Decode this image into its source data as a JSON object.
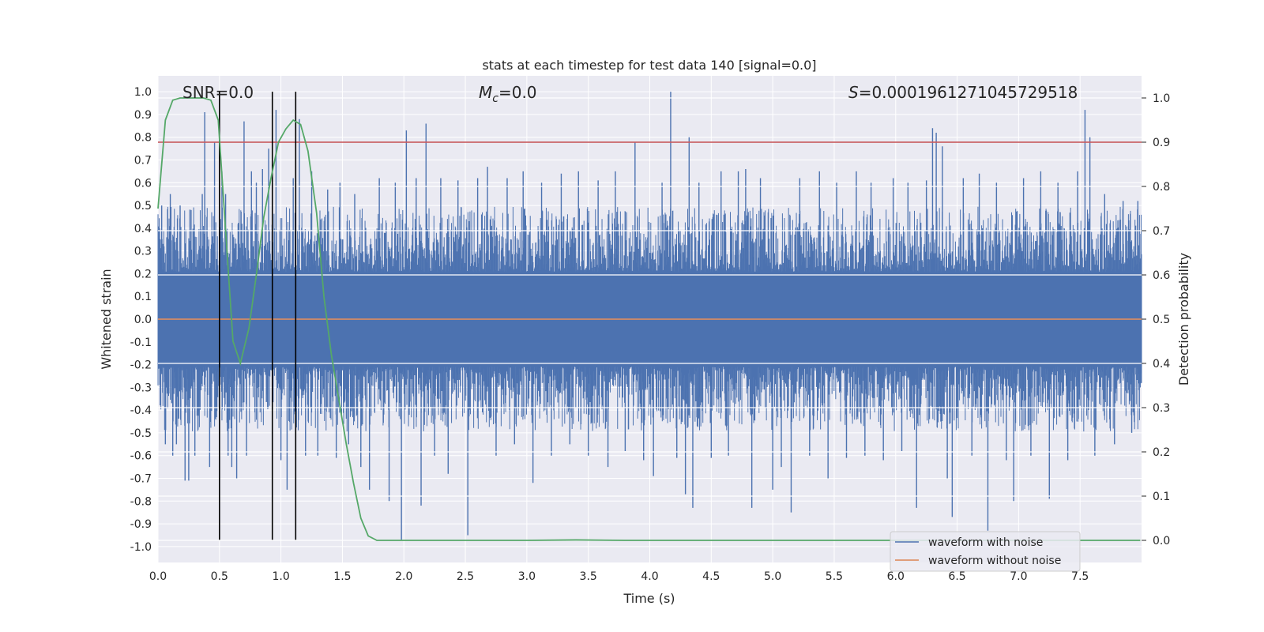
{
  "chart_data": {
    "type": "line",
    "title": "stats at each timestep for test data 140 [signal=0.0]",
    "xlabel": "Time (s)",
    "ylabel": "Whitened strain",
    "ylabel_right": "Detection probability",
    "xlim": [
      0.0,
      8.0
    ],
    "ylim": [
      -1.07,
      1.07
    ],
    "ylim_right": [
      -0.05,
      1.05
    ],
    "grid": true,
    "x_ticks": [
      0.0,
      0.5,
      1.0,
      1.5,
      2.0,
      2.5,
      3.0,
      3.5,
      4.0,
      4.5,
      5.0,
      5.5,
      6.0,
      6.5,
      7.0,
      7.5
    ],
    "x_tick_labels": [
      "0.0",
      "0.5",
      "1.0",
      "1.5",
      "2.0",
      "2.5",
      "3.0",
      "3.5",
      "4.0",
      "4.5",
      "5.0",
      "5.5",
      "6.0",
      "6.5",
      "7.0",
      "7.5"
    ],
    "y_ticks": [
      1.0,
      0.9,
      0.8,
      0.7,
      0.6,
      0.5,
      0.4,
      0.3,
      0.2,
      0.1,
      0.0,
      -0.1,
      -0.2,
      -0.3,
      -0.4,
      -0.5,
      -0.6,
      -0.7,
      -0.8,
      -0.9,
      -1.0
    ],
    "y_tick_labels": [
      "1.0",
      "0.9",
      "0.8",
      "0.7",
      "0.6",
      "0.5",
      "0.4",
      "0.3",
      "0.2",
      "0.1",
      "0.0",
      "-0.1",
      "-0.2",
      "-0.3",
      "-0.4",
      "-0.5",
      "-0.6",
      "-0.7",
      "-0.8",
      "-0.9",
      "-1.0"
    ],
    "y_ticks_right": [
      1.0,
      0.9,
      0.8,
      0.7,
      0.6,
      0.5,
      0.4,
      0.3,
      0.2,
      0.1,
      0.0
    ],
    "y_tick_labels_right": [
      "1.0",
      "0.9",
      "0.8",
      "0.7",
      "0.6",
      "0.5",
      "0.4",
      "0.3",
      "0.2",
      "0.1",
      "0.0"
    ],
    "annotations": {
      "snr": "SNR=0.0",
      "mc_symbol": "M",
      "mc_subscript": "c",
      "mc_value": "=0.0",
      "s_symbol": "S",
      "s_value": "=0.0001961271045729518"
    },
    "legend": {
      "position": "lower-right",
      "entries": [
        "waveform with noise",
        "waveform without noise"
      ]
    },
    "series": [
      {
        "name": "waveform with noise",
        "color": "#4c72b0",
        "axis": "left",
        "style": "noise",
        "typical_amplitude": 0.38,
        "peaks": [
          [
            0.03,
            0.5
          ],
          [
            0.06,
            -0.55
          ],
          [
            0.1,
            0.55
          ],
          [
            0.12,
            -0.6
          ],
          [
            0.15,
            -0.55
          ],
          [
            0.18,
            0.5
          ],
          [
            0.22,
            -0.71
          ],
          [
            0.25,
            -0.71
          ],
          [
            0.3,
            -0.6
          ],
          [
            0.36,
            0.55
          ],
          [
            0.38,
            0.91
          ],
          [
            0.42,
            -0.65
          ],
          [
            0.46,
            0.78
          ],
          [
            0.5,
            -0.78
          ],
          [
            0.52,
            0.65
          ],
          [
            0.55,
            0.55
          ],
          [
            0.57,
            -0.6
          ],
          [
            0.6,
            -0.65
          ],
          [
            0.64,
            -0.7
          ],
          [
            0.7,
            0.87
          ],
          [
            0.72,
            -0.6
          ],
          [
            0.76,
            0.65
          ],
          [
            0.8,
            0.6
          ],
          [
            0.85,
            0.66
          ],
          [
            0.9,
            0.75
          ],
          [
            0.93,
            -0.61
          ],
          [
            0.96,
            0.92
          ],
          [
            1.0,
            -0.62
          ],
          [
            1.05,
            -0.75
          ],
          [
            1.1,
            0.62
          ],
          [
            1.12,
            -0.85
          ],
          [
            1.15,
            0.88
          ],
          [
            1.2,
            -0.6
          ],
          [
            1.25,
            0.65
          ],
          [
            1.3,
            -0.6
          ],
          [
            1.38,
            0.57
          ],
          [
            1.45,
            -0.61
          ],
          [
            1.48,
            0.6
          ],
          [
            1.55,
            -0.55
          ],
          [
            1.6,
            0.55
          ],
          [
            1.65,
            -0.65
          ],
          [
            1.72,
            -0.75
          ],
          [
            1.8,
            0.62
          ],
          [
            1.88,
            -0.8
          ],
          [
            1.93,
            0.6
          ],
          [
            1.98,
            -0.97
          ],
          [
            2.02,
            0.83
          ],
          [
            2.1,
            0.62
          ],
          [
            2.14,
            -0.82
          ],
          [
            2.18,
            0.86
          ],
          [
            2.25,
            -0.6
          ],
          [
            2.3,
            0.62
          ],
          [
            2.36,
            -0.68
          ],
          [
            2.44,
            0.61
          ],
          [
            2.52,
            -0.95
          ],
          [
            2.6,
            0.62
          ],
          [
            2.68,
            0.67
          ],
          [
            2.75,
            -0.6
          ],
          [
            2.84,
            0.62
          ],
          [
            2.9,
            -0.55
          ],
          [
            2.97,
            0.65
          ],
          [
            3.05,
            -0.72
          ],
          [
            3.12,
            0.6
          ],
          [
            3.2,
            -0.6
          ],
          [
            3.28,
            0.64
          ],
          [
            3.35,
            -0.55
          ],
          [
            3.42,
            0.65
          ],
          [
            3.5,
            -0.6
          ],
          [
            3.58,
            0.61
          ],
          [
            3.66,
            -0.65
          ],
          [
            3.72,
            0.65
          ],
          [
            3.8,
            -0.58
          ],
          [
            3.88,
            0.78
          ],
          [
            3.95,
            -0.62
          ],
          [
            4.03,
            -0.69
          ],
          [
            4.1,
            0.6
          ],
          [
            4.17,
            1.0
          ],
          [
            4.22,
            -0.61
          ],
          [
            4.29,
            -0.77
          ],
          [
            4.32,
            0.8
          ],
          [
            4.35,
            -0.83
          ],
          [
            4.4,
            0.6
          ],
          [
            4.5,
            -0.61
          ],
          [
            4.58,
            0.65
          ],
          [
            4.64,
            -0.6
          ],
          [
            4.72,
            0.65
          ],
          [
            4.78,
            0.66
          ],
          [
            4.83,
            -0.83
          ],
          [
            4.9,
            0.62
          ],
          [
            5.0,
            -0.75
          ],
          [
            5.07,
            -0.65
          ],
          [
            5.15,
            -0.85
          ],
          [
            5.22,
            0.62
          ],
          [
            5.3,
            -0.6
          ],
          [
            5.38,
            0.65
          ],
          [
            5.45,
            -0.7
          ],
          [
            5.52,
            0.6
          ],
          [
            5.6,
            -0.61
          ],
          [
            5.68,
            0.65
          ],
          [
            5.75,
            -0.6
          ],
          [
            5.8,
            0.6
          ],
          [
            5.9,
            -0.62
          ],
          [
            5.98,
            0.62
          ],
          [
            6.05,
            -0.58
          ],
          [
            6.1,
            0.6
          ],
          [
            6.17,
            -0.83
          ],
          [
            6.25,
            0.61
          ],
          [
            6.3,
            0.84
          ],
          [
            6.33,
            0.82
          ],
          [
            6.38,
            0.76
          ],
          [
            6.42,
            -0.7
          ],
          [
            6.46,
            -0.87
          ],
          [
            6.55,
            0.62
          ],
          [
            6.62,
            -0.6
          ],
          [
            6.68,
            0.64
          ],
          [
            6.75,
            -0.93
          ],
          [
            6.82,
            0.6
          ],
          [
            6.9,
            -0.62
          ],
          [
            6.96,
            -0.8
          ],
          [
            7.04,
            0.62
          ],
          [
            7.1,
            -0.6
          ],
          [
            7.18,
            0.65
          ],
          [
            7.25,
            -0.79
          ],
          [
            7.32,
            0.6
          ],
          [
            7.4,
            -0.62
          ],
          [
            7.48,
            0.65
          ],
          [
            7.54,
            0.92
          ],
          [
            7.58,
            0.8
          ],
          [
            7.62,
            -0.6
          ],
          [
            7.7,
            0.55
          ],
          [
            7.78,
            -0.55
          ],
          [
            7.85,
            0.52
          ],
          [
            7.92,
            -0.5
          ],
          [
            7.97,
            0.52
          ]
        ]
      },
      {
        "name": "waveform without noise",
        "color": "#dd8452",
        "axis": "left",
        "x": [
          0.0,
          8.0
        ],
        "y": [
          0.0,
          0.0
        ]
      },
      {
        "name": "detection probability",
        "color": "#55a868",
        "axis": "right",
        "x": [
          0.0,
          0.06,
          0.12,
          0.18,
          0.25,
          0.31,
          0.37,
          0.43,
          0.49,
          0.55,
          0.61,
          0.67,
          0.74,
          0.8,
          0.86,
          0.92,
          0.98,
          1.04,
          1.1,
          1.16,
          1.22,
          1.29,
          1.35,
          1.41,
          1.47,
          1.53,
          1.59,
          1.65,
          1.71,
          1.78,
          1.84,
          1.9,
          1.96,
          2.2,
          2.6,
          3.0,
          3.4,
          3.8,
          4.2,
          4.6,
          5.0,
          5.4,
          5.8,
          6.2,
          6.6,
          7.0,
          7.4,
          7.99
        ],
        "y": [
          0.75,
          0.95,
          0.995,
          1.0,
          1.0,
          1.0,
          1.0,
          0.995,
          0.95,
          0.7,
          0.45,
          0.4,
          0.48,
          0.6,
          0.73,
          0.82,
          0.9,
          0.93,
          0.95,
          0.94,
          0.88,
          0.74,
          0.55,
          0.42,
          0.32,
          0.22,
          0.13,
          0.05,
          0.01,
          0.0,
          0.0,
          0.0,
          0.0,
          0.0,
          0.0,
          0.0,
          0.001,
          0.0,
          0.0,
          0.0,
          0.0,
          0.0,
          0.0,
          0.0,
          0.0,
          0.0,
          0.0,
          0.0
        ]
      }
    ],
    "threshold": {
      "color": "#c44e52",
      "axis": "right",
      "y": 0.9
    },
    "vlines": {
      "color": "#000000",
      "x": [
        0.5,
        0.93,
        1.12
      ],
      "y_range": [
        -0.97,
        1.0
      ]
    }
  }
}
